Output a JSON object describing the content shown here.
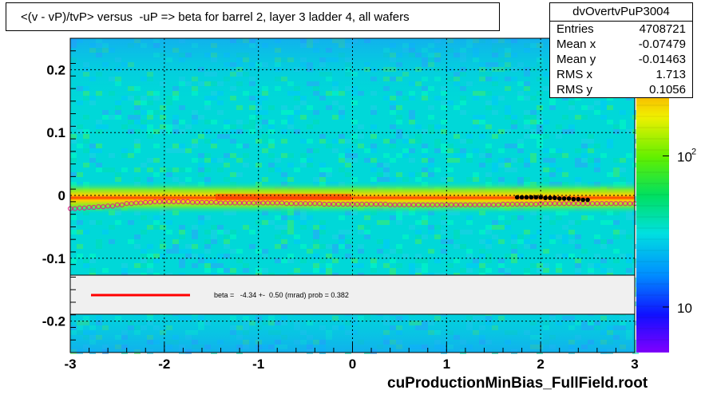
{
  "title": "<(v - vP)/tvP> versus  -uP => beta for barrel 2, layer 3 ladder 4, all wafers",
  "stats": {
    "name": "dvOvertvPuP3004",
    "rows": [
      {
        "label": "Entries",
        "value": "4708721"
      },
      {
        "label": "Mean x",
        "value": "-0.07479"
      },
      {
        "label": "Mean y",
        "value": "-0.01463"
      },
      {
        "label": "RMS x",
        "value": "1.713"
      },
      {
        "label": "RMS y",
        "value": "0.1056"
      }
    ]
  },
  "fit_text": "beta =   -4.34 +-  0.50 (mrad) prob = 0.382",
  "footer": "cuProductionMinBias_FullField.root",
  "colors": {
    "background": "#00ddd4",
    "fit_line": "#ff0000",
    "profile_marker": "#e0208a",
    "band_core": "#ff2a00"
  },
  "chart_data": {
    "type": "heatmap",
    "xlim": [
      -3,
      3
    ],
    "ylim": [
      -0.25,
      0.25
    ],
    "x_ticks": [
      -3,
      -2,
      -1,
      0,
      1,
      2,
      3
    ],
    "x_tick_labels": [
      "-3",
      "-2",
      "-1",
      "0",
      "1",
      "2",
      "3"
    ],
    "y_ticks": [
      -0.2,
      -0.1,
      0,
      0.1,
      0.2
    ],
    "y_tick_labels": [
      "-0.2",
      "-0.1",
      "0",
      "0.1",
      "0.2"
    ],
    "grid": true,
    "colorbar_labels": [
      {
        "value": 100,
        "label": "10",
        "exp": "2"
      },
      {
        "value": 10,
        "label": "10",
        "exp": ""
      }
    ],
    "profile": {
      "x": [
        -3.0,
        -2.9,
        -2.8,
        -2.7,
        -2.6,
        -2.5,
        -2.4,
        -2.3,
        -2.2,
        -2.1,
        -2.0,
        -1.9,
        -1.8,
        -1.7,
        -1.6,
        -1.5,
        -1.4,
        -1.3,
        -1.2,
        -1.1,
        -1.0,
        -0.9,
        -0.8,
        -0.7,
        -0.6,
        -0.5,
        -0.4,
        -0.3,
        -0.2,
        -0.1,
        0.0,
        0.1,
        0.2,
        0.3,
        0.4,
        0.5,
        0.6,
        0.7,
        0.8,
        0.9,
        1.0,
        1.1,
        1.2,
        1.3,
        1.4,
        1.5,
        1.6,
        1.7,
        1.8,
        1.9,
        2.0,
        2.1,
        2.2,
        2.3,
        2.4,
        2.5,
        2.6,
        2.7,
        2.8,
        2.9,
        3.0
      ],
      "y": [
        -0.021,
        -0.02,
        -0.019,
        -0.018,
        -0.017,
        -0.015,
        -0.013,
        -0.012,
        -0.011,
        -0.01,
        -0.01,
        -0.01,
        -0.01,
        -0.011,
        -0.011,
        -0.011,
        -0.012,
        -0.012,
        -0.012,
        -0.012,
        -0.012,
        -0.012,
        -0.012,
        -0.013,
        -0.013,
        -0.013,
        -0.013,
        -0.014,
        -0.014,
        -0.014,
        -0.014,
        -0.014,
        -0.014,
        -0.014,
        -0.015,
        -0.015,
        -0.015,
        -0.015,
        -0.015,
        -0.015,
        -0.015,
        -0.015,
        -0.015,
        -0.015,
        -0.015,
        -0.015,
        -0.014,
        -0.014,
        -0.014,
        -0.014,
        -0.013,
        -0.013,
        -0.013,
        -0.013,
        -0.013,
        -0.013,
        -0.013,
        -0.013,
        -0.013,
        -0.013,
        -0.013
      ]
    },
    "highlight_points": {
      "x": [
        1.75,
        1.8,
        1.85,
        1.9,
        1.95,
        2.0,
        2.05,
        2.1,
        2.15,
        2.2,
        2.25,
        2.3,
        2.35,
        2.4,
        2.45,
        2.5
      ],
      "y": [
        -0.003,
        -0.003,
        -0.003,
        -0.003,
        -0.003,
        -0.003,
        -0.004,
        -0.004,
        -0.004,
        -0.005,
        -0.005,
        -0.005,
        -0.006,
        -0.006,
        -0.007,
        -0.007
      ]
    },
    "fit_line": {
      "beta_mrad": -4.34,
      "error_mrad": 0.5,
      "prob": 0.382
    }
  }
}
